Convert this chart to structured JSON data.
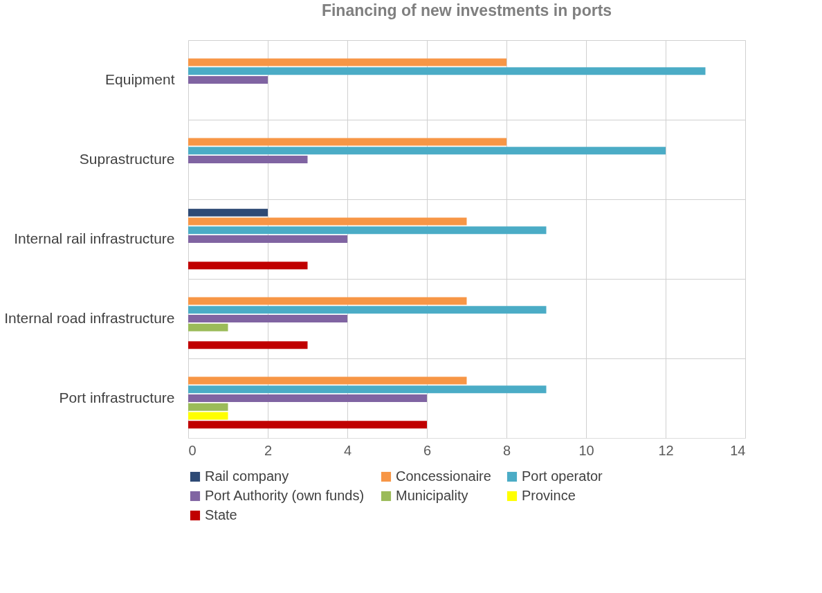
{
  "chart_data": {
    "type": "bar",
    "orientation": "horizontal",
    "title": "Financing of new investments in ports",
    "categories": [
      "Equipment",
      "Suprastructure",
      "Internal rail infrastructure",
      "Internal road infrastructure",
      "Port infrastructure"
    ],
    "series": [
      {
        "name": "Rail company",
        "color": "#2e4a75",
        "values": [
          null,
          null,
          2,
          null,
          null
        ]
      },
      {
        "name": "Concessionaire",
        "color": "#f79646",
        "values": [
          8,
          8,
          7,
          7,
          7
        ]
      },
      {
        "name": "Port operator",
        "color": "#4bacc6",
        "values": [
          13,
          12,
          9,
          9,
          9
        ]
      },
      {
        "name": "Port Authority (own funds)",
        "color": "#8064a2",
        "values": [
          2,
          3,
          4,
          4,
          6
        ]
      },
      {
        "name": "Municipality",
        "color": "#9bbb59",
        "values": [
          null,
          null,
          null,
          1,
          1
        ]
      },
      {
        "name": "Province",
        "color": "#ffff00",
        "values": [
          null,
          null,
          null,
          null,
          1
        ]
      },
      {
        "name": "State",
        "color": "#c00000",
        "values": [
          null,
          null,
          3,
          3,
          6
        ]
      }
    ],
    "xlim": [
      0,
      14
    ],
    "xticks": [
      0,
      2,
      4,
      6,
      8,
      10,
      12,
      14
    ],
    "grid": true,
    "legend": "bottom"
  }
}
